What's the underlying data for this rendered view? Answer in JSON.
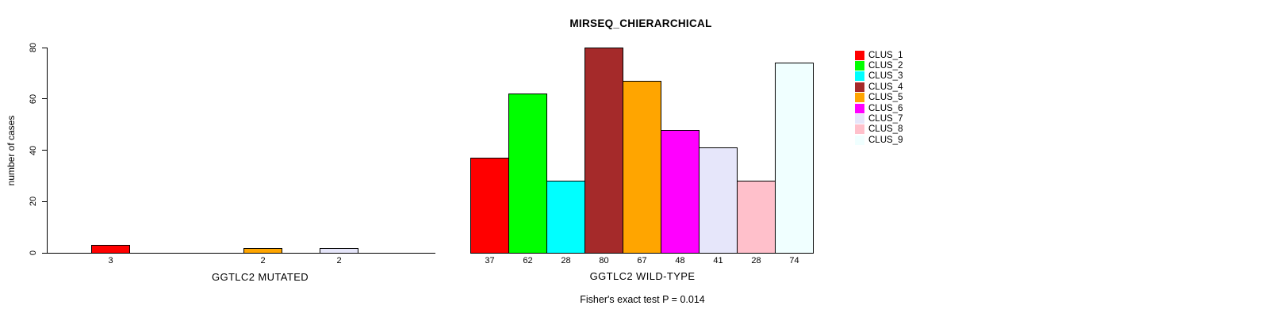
{
  "chart_data": {
    "type": "bar",
    "title": "MIRSEQ_CHIERARCHICAL",
    "ylabel": "number of cases",
    "xlabel": "",
    "subtitle": "Fisher's exact test P = 0.014",
    "ylim": [
      0,
      80
    ],
    "yticks": [
      0,
      20,
      40,
      60,
      80
    ],
    "grid": false,
    "legend_position": "right",
    "bar_border_color": "#000000",
    "background_color": "#FFFFFF",
    "categories": [
      "CLUS_1",
      "CLUS_2",
      "CLUS_3",
      "CLUS_4",
      "CLUS_5",
      "CLUS_6",
      "CLUS_7",
      "CLUS_8",
      "CLUS_9"
    ],
    "colors": [
      "#FF0000",
      "#00FF00",
      "#00FFFF",
      "#A52A2A",
      "#FFA500",
      "#FF00FF",
      "#E6E6FA",
      "#FFC0CB",
      "#F0FFFF"
    ],
    "groups": [
      {
        "label": "GGTLC2 MUTATED",
        "values": [
          3,
          0,
          0,
          0,
          2,
          0,
          2,
          0,
          0
        ]
      },
      {
        "label": "GGTLC2 WILD-TYPE",
        "values": [
          37,
          62,
          28,
          80,
          67,
          48,
          41,
          28,
          74
        ]
      }
    ]
  }
}
